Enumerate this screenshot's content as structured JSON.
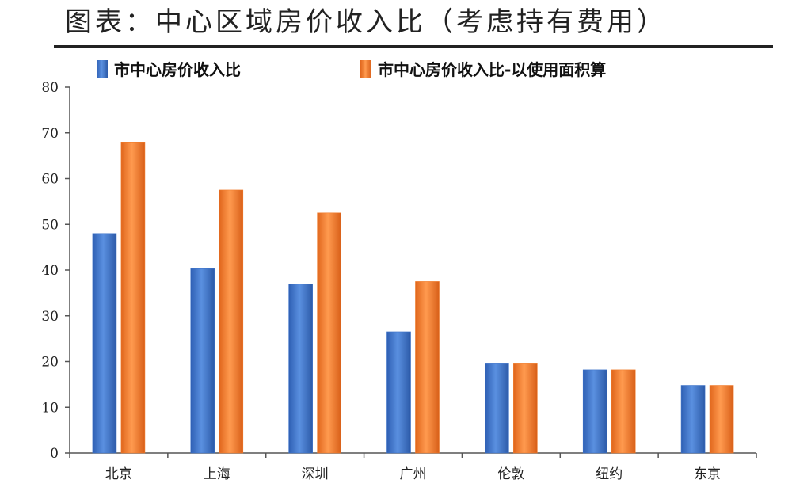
{
  "title": "图表：中心区域房价收入比（考虑持有费用）",
  "chart_data": {
    "type": "bar",
    "categories": [
      "北京",
      "上海",
      "深圳",
      "广州",
      "伦敦",
      "纽约",
      "东京"
    ],
    "series": [
      {
        "name": "市中心房价收入比",
        "values": [
          48,
          40.3,
          37,
          26.5,
          19.5,
          18.2,
          14.8
        ],
        "color": "#3f74c9"
      },
      {
        "name": "市中心房价收入比-以使用面积算",
        "values": [
          68,
          57.5,
          52.5,
          37.5,
          19.5,
          18.2,
          14.8
        ],
        "color": "#f07c2c"
      }
    ],
    "ylim": [
      0,
      80
    ],
    "yticks": [
      0,
      10,
      20,
      30,
      40,
      50,
      60,
      70,
      80
    ],
    "grid": false,
    "legend_position": "top-left"
  }
}
